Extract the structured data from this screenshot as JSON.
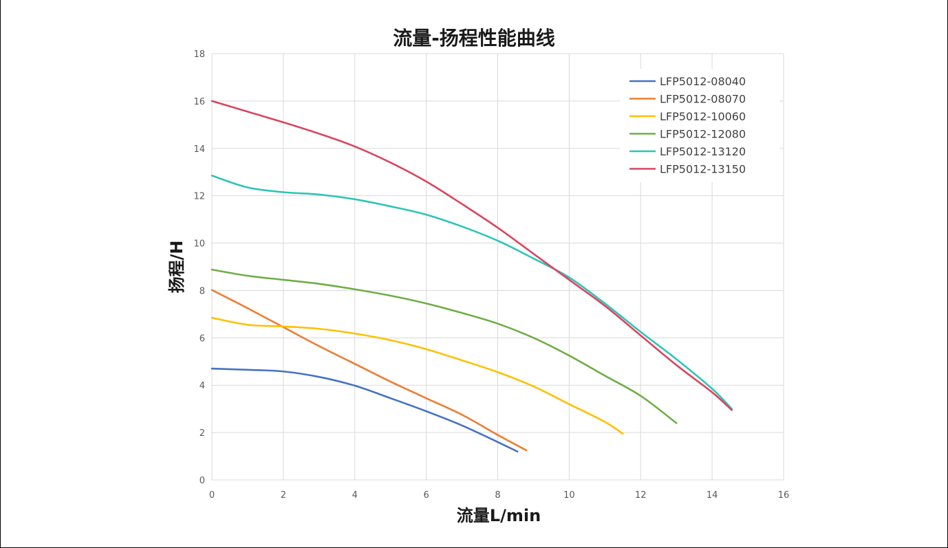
{
  "chart_data": {
    "type": "line",
    "title": "流量-扬程性能曲线",
    "xlabel": "流量L/min",
    "ylabel": "扬程/H",
    "xlim": [
      0,
      16
    ],
    "ylim": [
      0,
      18
    ],
    "xticks": [
      0,
      2,
      4,
      6,
      8,
      10,
      12,
      14,
      16
    ],
    "yticks": [
      0,
      2,
      4,
      6,
      8,
      10,
      12,
      14,
      16,
      18
    ],
    "grid": true,
    "legend_position": "top-right",
    "series": [
      {
        "name": "LFP5012-08040",
        "color": "#4472C4",
        "x": [
          0,
          1,
          2,
          3,
          4,
          5,
          6,
          7,
          8,
          8.55
        ],
        "y": [
          4.7,
          4.65,
          4.58,
          4.35,
          3.98,
          3.45,
          2.9,
          2.3,
          1.6,
          1.2
        ]
      },
      {
        "name": "LFP5012-08070",
        "color": "#ED7D31",
        "x": [
          0,
          1,
          2,
          3,
          4,
          5,
          6,
          7,
          8,
          8.8
        ],
        "y": [
          8.02,
          7.25,
          6.45,
          5.65,
          4.9,
          4.15,
          3.45,
          2.75,
          1.9,
          1.25
        ]
      },
      {
        "name": "LFP5012-10060",
        "color": "#FFC000",
        "x": [
          0,
          1,
          2,
          3,
          4,
          5,
          6,
          7,
          8,
          9,
          10,
          11,
          11.5
        ],
        "y": [
          6.85,
          6.55,
          6.48,
          6.38,
          6.18,
          5.9,
          5.52,
          5.05,
          4.55,
          3.95,
          3.2,
          2.45,
          1.95
        ]
      },
      {
        "name": "LFP5012-12080",
        "color": "#70AD47",
        "x": [
          0,
          1,
          2,
          3,
          4,
          5,
          6,
          7,
          8,
          9,
          10,
          11,
          12,
          13
        ],
        "y": [
          8.88,
          8.62,
          8.45,
          8.28,
          8.05,
          7.78,
          7.45,
          7.05,
          6.6,
          6.0,
          5.25,
          4.4,
          3.55,
          2.4
        ]
      },
      {
        "name": "LFP5012-13120",
        "color": "#2EC4B6",
        "x": [
          0,
          1,
          2,
          3,
          4,
          5,
          6,
          7,
          8,
          9,
          10,
          11,
          12,
          13,
          14,
          14.55
        ],
        "y": [
          12.85,
          12.35,
          12.15,
          12.05,
          11.85,
          11.55,
          11.2,
          10.7,
          10.1,
          9.35,
          8.55,
          7.45,
          6.25,
          5.1,
          3.85,
          3.0
        ]
      },
      {
        "name": "LFP5012-13150",
        "color": "#D9455F",
        "x": [
          0,
          1,
          2,
          3,
          4,
          5,
          6,
          7,
          8,
          9,
          10,
          11,
          12,
          13,
          14,
          14.55
        ],
        "y": [
          16.0,
          15.55,
          15.1,
          14.62,
          14.08,
          13.4,
          12.6,
          11.65,
          10.65,
          9.55,
          8.45,
          7.35,
          6.1,
          4.85,
          3.7,
          2.95
        ]
      }
    ]
  }
}
